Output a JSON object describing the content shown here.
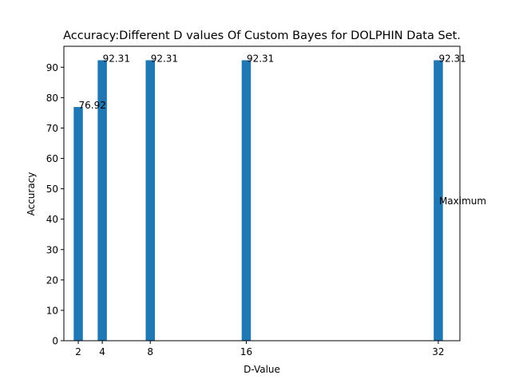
{
  "chart_data": {
    "type": "bar",
    "title": "Accuracy:Different D values Of Custom Bayes for DOLPHIN Data Set.",
    "xlabel": "D-Value",
    "ylabel": "Accuracy",
    "x": [
      2,
      4,
      8,
      16,
      32
    ],
    "values": [
      76.92,
      92.31,
      92.31,
      92.31,
      92.31
    ],
    "data_labels": [
      "76.92",
      "92.31",
      "92.31",
      "92.31",
      "92.31"
    ],
    "x_ticks": [
      2,
      4,
      8,
      16,
      32
    ],
    "y_ticks": [
      0,
      10,
      20,
      30,
      40,
      50,
      60,
      70,
      80,
      90
    ],
    "xlim": [
      0.8,
      33.8
    ],
    "ylim": [
      0,
      96.9
    ],
    "bar_color": "#1f77b4",
    "annotation": {
      "text": "Maximum",
      "x": 32,
      "y": 46.2
    },
    "grid": false,
    "legend": "none"
  }
}
